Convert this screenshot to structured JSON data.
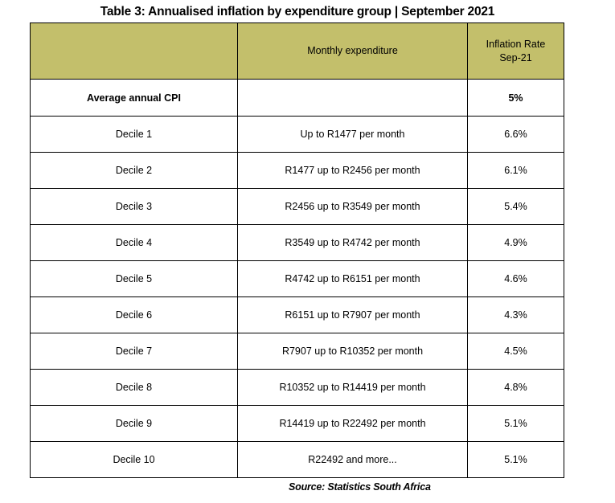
{
  "title": "Table 3: Annualised inflation by expenditure group | September 2021",
  "header": {
    "col1": "",
    "col2": "Monthly expenditure",
    "col3_line1": "Inflation Rate",
    "col3_line2": "Sep-21"
  },
  "average_row": {
    "label": "Average annual CPI",
    "expenditure": "",
    "rate": "5%"
  },
  "rows": [
    {
      "decile": "Decile 1",
      "expenditure": "Up to R1477 per month",
      "rate": "6.6%"
    },
    {
      "decile": "Decile 2",
      "expenditure": "R1477 up to R2456 per month",
      "rate": "6.1%"
    },
    {
      "decile": "Decile 3",
      "expenditure": "R2456 up to R3549 per month",
      "rate": "5.4%"
    },
    {
      "decile": "Decile 4",
      "expenditure": "R3549 up to R4742 per month",
      "rate": "4.9%"
    },
    {
      "decile": "Decile 5",
      "expenditure": "R4742 up to R6151 per month",
      "rate": "4.6%"
    },
    {
      "decile": "Decile 6",
      "expenditure": "R6151 up to R7907 per month",
      "rate": "4.3%"
    },
    {
      "decile": "Decile 7",
      "expenditure": "R7907 up to R10352 per month",
      "rate": "4.5%"
    },
    {
      "decile": "Decile 8",
      "expenditure": "R10352 up to R14419 per month",
      "rate": "4.8%"
    },
    {
      "decile": "Decile 9",
      "expenditure": "R14419 up to R22492 per month",
      "rate": "5.1%"
    },
    {
      "decile": "Decile 10",
      "expenditure": "R22492 and more...",
      "rate": "5.1%"
    }
  ],
  "source": "Source: Statistics South Africa",
  "colors": {
    "header_background": "#c3bf6b",
    "border": "#000000"
  }
}
